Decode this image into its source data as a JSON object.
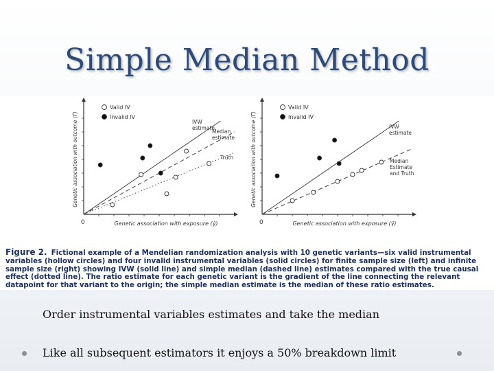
{
  "slide": {
    "title": "Simple Median Method",
    "bullets": [
      "Order instrumental variables estimates and take the median",
      "Like all subsequent estimators it enjoys a 50% breakdown limit"
    ]
  },
  "figure": {
    "label": "Figure 2.",
    "caption": "Fictional example of a Mendelian randomization analysis with 10 genetic variants—six valid instrumental variables (hollow circles) and four invalid instrumental variables (solid circles) for finite sample size (left) and infinite sample size (right) showing IVW (solid line) and simple median (dashed line) estimates compared with the true causal effect (dotted line). The ratio estimate for each genetic variant is the gradient of the line connecting the relevant datapoint for that variant to the origin; the simple median estimate is the median of these ratio estimates."
  },
  "chart_data": [
    {
      "type": "scatter",
      "xlabel": "Genetic association with exposure (γ̂)",
      "ylabel": "Genetic association with outcome (Γ̂)",
      "origin_label": "0",
      "xlim": [
        0,
        10
      ],
      "ylim": [
        0,
        8
      ],
      "grid": false,
      "legend": {
        "placement": "top-left",
        "entries": [
          "Valid IV",
          "Invalid IV"
        ]
      },
      "series": [
        {
          "name": "Valid IV",
          "marker": "hollow",
          "points": [
            [
              1.9,
              0.7
            ],
            [
              3.8,
              2.9
            ],
            [
              5.5,
              1.5
            ],
            [
              6.1,
              2.7
            ],
            [
              6.8,
              4.6
            ],
            [
              8.3,
              3.7
            ]
          ]
        },
        {
          "name": "Invalid IV",
          "marker": "solid",
          "points": [
            [
              1.1,
              3.6
            ],
            [
              3.9,
              4.1
            ],
            [
              4.4,
              5.0
            ],
            [
              5.1,
              3.0
            ]
          ]
        }
      ],
      "lines": [
        {
          "name": "IVW",
          "label": "IVW estimate",
          "style": "solid",
          "slope": 0.75
        },
        {
          "name": "Median",
          "label": "Median estimate",
          "style": "dashed",
          "slope": 0.6
        },
        {
          "name": "Truth",
          "label": "Truth",
          "style": "dotted",
          "slope": 0.45
        }
      ]
    },
    {
      "type": "scatter",
      "xlabel": "Genetic association with exposure (γ̂)",
      "ylabel": "Genetic association with outcome (Γ̂)",
      "origin_label": "0",
      "xlim": [
        0,
        10
      ],
      "ylim": [
        0,
        8
      ],
      "grid": false,
      "legend": {
        "placement": "top-left",
        "entries": [
          "Valid IV",
          "Invalid IV"
        ]
      },
      "series": [
        {
          "name": "Valid IV",
          "marker": "hollow",
          "points": [
            [
              2.0,
              1.0
            ],
            [
              3.4,
              1.6
            ],
            [
              5.0,
              2.4
            ],
            [
              6.0,
              2.9
            ],
            [
              6.6,
              3.2
            ],
            [
              7.9,
              3.8
            ]
          ]
        },
        {
          "name": "Invalid IV",
          "marker": "solid",
          "points": [
            [
              1.0,
              2.8
            ],
            [
              3.8,
              4.1
            ],
            [
              4.8,
              5.4
            ],
            [
              5.1,
              3.7
            ]
          ]
        }
      ],
      "lines": [
        {
          "name": "IVW",
          "label": "IVW estimate",
          "style": "solid",
          "slope": 0.75
        },
        {
          "name": "Median",
          "label": "Median Estimate and Truth",
          "style": "dashed",
          "slope": 0.48
        }
      ]
    }
  ]
}
